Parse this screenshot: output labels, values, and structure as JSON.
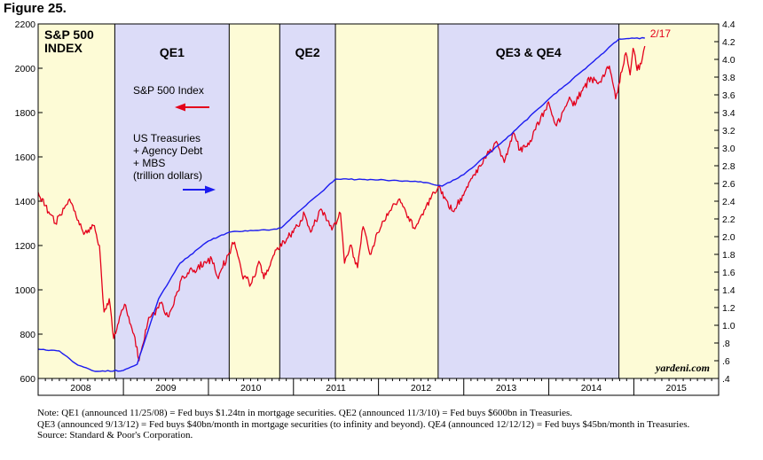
{
  "figure_label": "Figure 25.",
  "chart_data": {
    "type": "line",
    "title": "S&P 500 INDEX",
    "title_lines": [
      "S&P 500",
      "INDEX"
    ],
    "x_range": [
      "2008-01-01",
      "2015-12-31"
    ],
    "x_ticks": [
      "2008",
      "2009",
      "2010",
      "2011",
      "2012",
      "2013",
      "2014",
      "2015"
    ],
    "y_left": {
      "range": [
        600,
        2200
      ],
      "ticks": [
        "600",
        "800",
        "1000",
        "1200",
        "1400",
        "1600",
        "1800",
        "2000",
        "2200"
      ]
    },
    "y_right": {
      "range": [
        0.4,
        4.4
      ],
      "ticks": [
        ".4",
        ".6",
        ".8",
        "1.0",
        "1.2",
        "1.4",
        "1.6",
        "1.8",
        "2.0",
        "2.2",
        "2.4",
        "2.6",
        "2.8",
        "3.0",
        "3.2",
        "3.4",
        "3.6",
        "3.8",
        "4.0",
        "4.2",
        "4.4"
      ]
    },
    "periods": [
      {
        "start": "2008-01-01",
        "end": "2008-11-25",
        "label": "",
        "color": "#fdfbd6"
      },
      {
        "start": "2008-11-25",
        "end": "2010-03-31",
        "label": "QE1",
        "color": "#dcdcf8"
      },
      {
        "start": "2010-03-31",
        "end": "2010-11-03",
        "label": "",
        "color": "#fdfbd6"
      },
      {
        "start": "2010-11-03",
        "end": "2011-06-30",
        "label": "QE2",
        "color": "#dcdcf8"
      },
      {
        "start": "2011-06-30",
        "end": "2012-09-13",
        "label": "",
        "color": "#fdfbd6"
      },
      {
        "start": "2012-09-13",
        "end": "2014-10-29",
        "label": "QE3 & QE4",
        "color": "#dcdcf8"
      },
      {
        "start": "2014-10-29",
        "end": "2015-12-31",
        "label": "",
        "color": "#fdfbd6"
      }
    ],
    "series": [
      {
        "name": "S&P 500 Index",
        "axis": "left",
        "color": "#e4001b",
        "points": [
          [
            "2008-01-01",
            1440
          ],
          [
            "2008-02-01",
            1380
          ],
          [
            "2008-03-15",
            1300
          ],
          [
            "2008-05-15",
            1410
          ],
          [
            "2008-07-15",
            1250
          ],
          [
            "2008-08-25",
            1290
          ],
          [
            "2008-09-20",
            1200
          ],
          [
            "2008-10-10",
            900
          ],
          [
            "2008-11-01",
            960
          ],
          [
            "2008-11-20",
            780
          ],
          [
            "2008-12-20",
            890
          ],
          [
            "2009-01-06",
            935
          ],
          [
            "2009-02-15",
            800
          ],
          [
            "2009-03-09",
            680
          ],
          [
            "2009-04-15",
            850
          ],
          [
            "2009-06-10",
            940
          ],
          [
            "2009-07-10",
            880
          ],
          [
            "2009-09-15",
            1060
          ],
          [
            "2009-11-15",
            1100
          ],
          [
            "2010-01-15",
            1140
          ],
          [
            "2010-02-08",
            1060
          ],
          [
            "2010-04-23",
            1215
          ],
          [
            "2010-05-25",
            1070
          ],
          [
            "2010-07-02",
            1025
          ],
          [
            "2010-08-10",
            1120
          ],
          [
            "2010-08-27",
            1050
          ],
          [
            "2010-10-15",
            1180
          ],
          [
            "2010-12-31",
            1258
          ],
          [
            "2011-02-18",
            1340
          ],
          [
            "2011-03-16",
            1260
          ],
          [
            "2011-04-29",
            1365
          ],
          [
            "2011-06-15",
            1270
          ],
          [
            "2011-07-22",
            1345
          ],
          [
            "2011-08-08",
            1120
          ],
          [
            "2011-09-01",
            1200
          ],
          [
            "2011-10-03",
            1100
          ],
          [
            "2011-10-27",
            1285
          ],
          [
            "2011-11-25",
            1160
          ],
          [
            "2011-12-30",
            1258
          ],
          [
            "2012-02-15",
            1350
          ],
          [
            "2012-04-01",
            1410
          ],
          [
            "2012-06-01",
            1280
          ],
          [
            "2012-07-15",
            1360
          ],
          [
            "2012-09-14",
            1465
          ],
          [
            "2012-11-15",
            1355
          ],
          [
            "2012-12-31",
            1426
          ],
          [
            "2013-02-15",
            1520
          ],
          [
            "2013-05-21",
            1670
          ],
          [
            "2013-06-24",
            1575
          ],
          [
            "2013-08-02",
            1710
          ],
          [
            "2013-08-30",
            1630
          ],
          [
            "2013-10-08",
            1655
          ],
          [
            "2013-12-31",
            1848
          ],
          [
            "2014-02-03",
            1740
          ],
          [
            "2014-03-31",
            1870
          ],
          [
            "2014-04-15",
            1830
          ],
          [
            "2014-06-30",
            1960
          ],
          [
            "2014-07-31",
            1930
          ],
          [
            "2014-09-18",
            2010
          ],
          [
            "2014-10-15",
            1862
          ],
          [
            "2014-11-28",
            2070
          ],
          [
            "2014-12-16",
            1970
          ],
          [
            "2014-12-29",
            2090
          ],
          [
            "2015-01-15",
            1990
          ],
          [
            "2015-02-02",
            2020
          ],
          [
            "2015-02-17",
            2100
          ]
        ]
      },
      {
        "name": "US Treasuries + Agency Debt + MBS (trillion dollars)",
        "axis": "right",
        "color": "#1b1bf0",
        "points": [
          [
            "2008-01-01",
            0.73
          ],
          [
            "2008-04-01",
            0.71
          ],
          [
            "2008-06-20",
            0.55
          ],
          [
            "2008-09-01",
            0.48
          ],
          [
            "2008-12-31",
            0.49
          ],
          [
            "2009-03-01",
            0.56
          ],
          [
            "2009-06-01",
            1.3
          ],
          [
            "2009-09-01",
            1.7
          ],
          [
            "2009-12-31",
            1.95
          ],
          [
            "2010-03-31",
            2.05
          ],
          [
            "2010-06-30",
            2.07
          ],
          [
            "2010-09-30",
            2.08
          ],
          [
            "2010-11-10",
            2.1
          ],
          [
            "2011-01-31",
            2.3
          ],
          [
            "2011-04-30",
            2.5
          ],
          [
            "2011-06-30",
            2.65
          ],
          [
            "2011-12-31",
            2.64
          ],
          [
            "2012-06-30",
            2.62
          ],
          [
            "2012-09-30",
            2.57
          ],
          [
            "2013-01-01",
            2.7
          ],
          [
            "2013-06-30",
            3.1
          ],
          [
            "2013-12-31",
            3.55
          ],
          [
            "2014-06-30",
            3.95
          ],
          [
            "2014-10-29",
            4.23
          ],
          [
            "2015-02-17",
            4.24
          ]
        ]
      }
    ],
    "legend": [
      {
        "lines": [
          "S&P 500 Index"
        ],
        "color": "#e4001b",
        "arrow": "left"
      },
      {
        "lines": [
          "US Treasuries",
          "+ Agency Debt",
          "+ MBS",
          "(trillion dollars)"
        ],
        "color": "#1b1bf0",
        "arrow": "right"
      }
    ],
    "annotation": "2/17",
    "watermark": "yardeni.com"
  },
  "notes": [
    "Note: QE1 (announced 11/25/08) = Fed buys $1.24tn in mortgage securities. QE2 (announced 11/3/10) = Fed buys $600bn in Treasuries.",
    "QE3 (announced 9/13/12) = Fed buys $40bn/month in mortgage securities (to infinity and beyond). QE4 (announced 12/12/12) = Fed buys $45bn/month in Treasuries.",
    "Source: Standard & Poor's Corporation."
  ]
}
